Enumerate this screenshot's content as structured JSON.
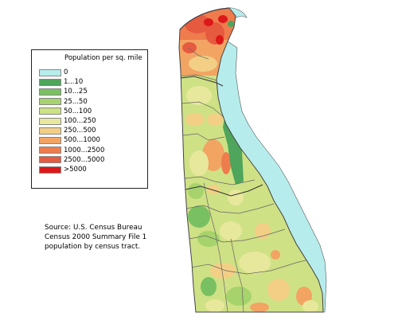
{
  "legend": {
    "title": "Population per sq. mile",
    "items": [
      {
        "label": "0",
        "color": "#b7ecec"
      },
      {
        "label": "1...10",
        "color": "#4ea55b"
      },
      {
        "label": "10...25",
        "color": "#79c062"
      },
      {
        "label": "25...50",
        "color": "#a6d36c"
      },
      {
        "label": "50...100",
        "color": "#cde283"
      },
      {
        "label": "100...250",
        "color": "#e8e89c"
      },
      {
        "label": "250...500",
        "color": "#f3cf86"
      },
      {
        "label": "500...1000",
        "color": "#f2a463"
      },
      {
        "label": "1000...2500",
        "color": "#ee7c4c"
      },
      {
        "label": "2500...5000",
        "color": "#e65a40"
      },
      {
        "label": ">5000",
        "color": "#dd1818"
      }
    ]
  },
  "source": {
    "line1": "Source: U.S. Census Bureau",
    "line2": "Census 2000 Summary File 1",
    "line3": "population by census tract."
  },
  "colors": {
    "water": "#b7ecec",
    "border": "#555555",
    "land_base": "#cfe185"
  }
}
